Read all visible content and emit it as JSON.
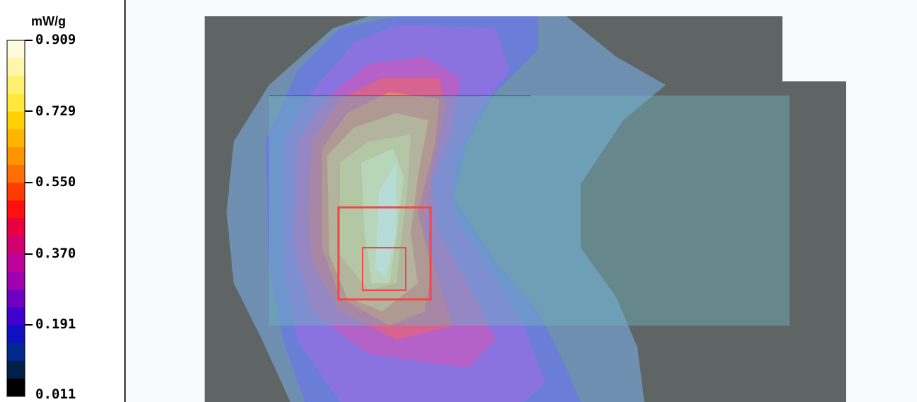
{
  "colorbar": {
    "unit": "mW/g",
    "labels": [
      "0.909",
      "0.729",
      "0.550",
      "0.370",
      "0.191",
      "0.011"
    ]
  }
}
